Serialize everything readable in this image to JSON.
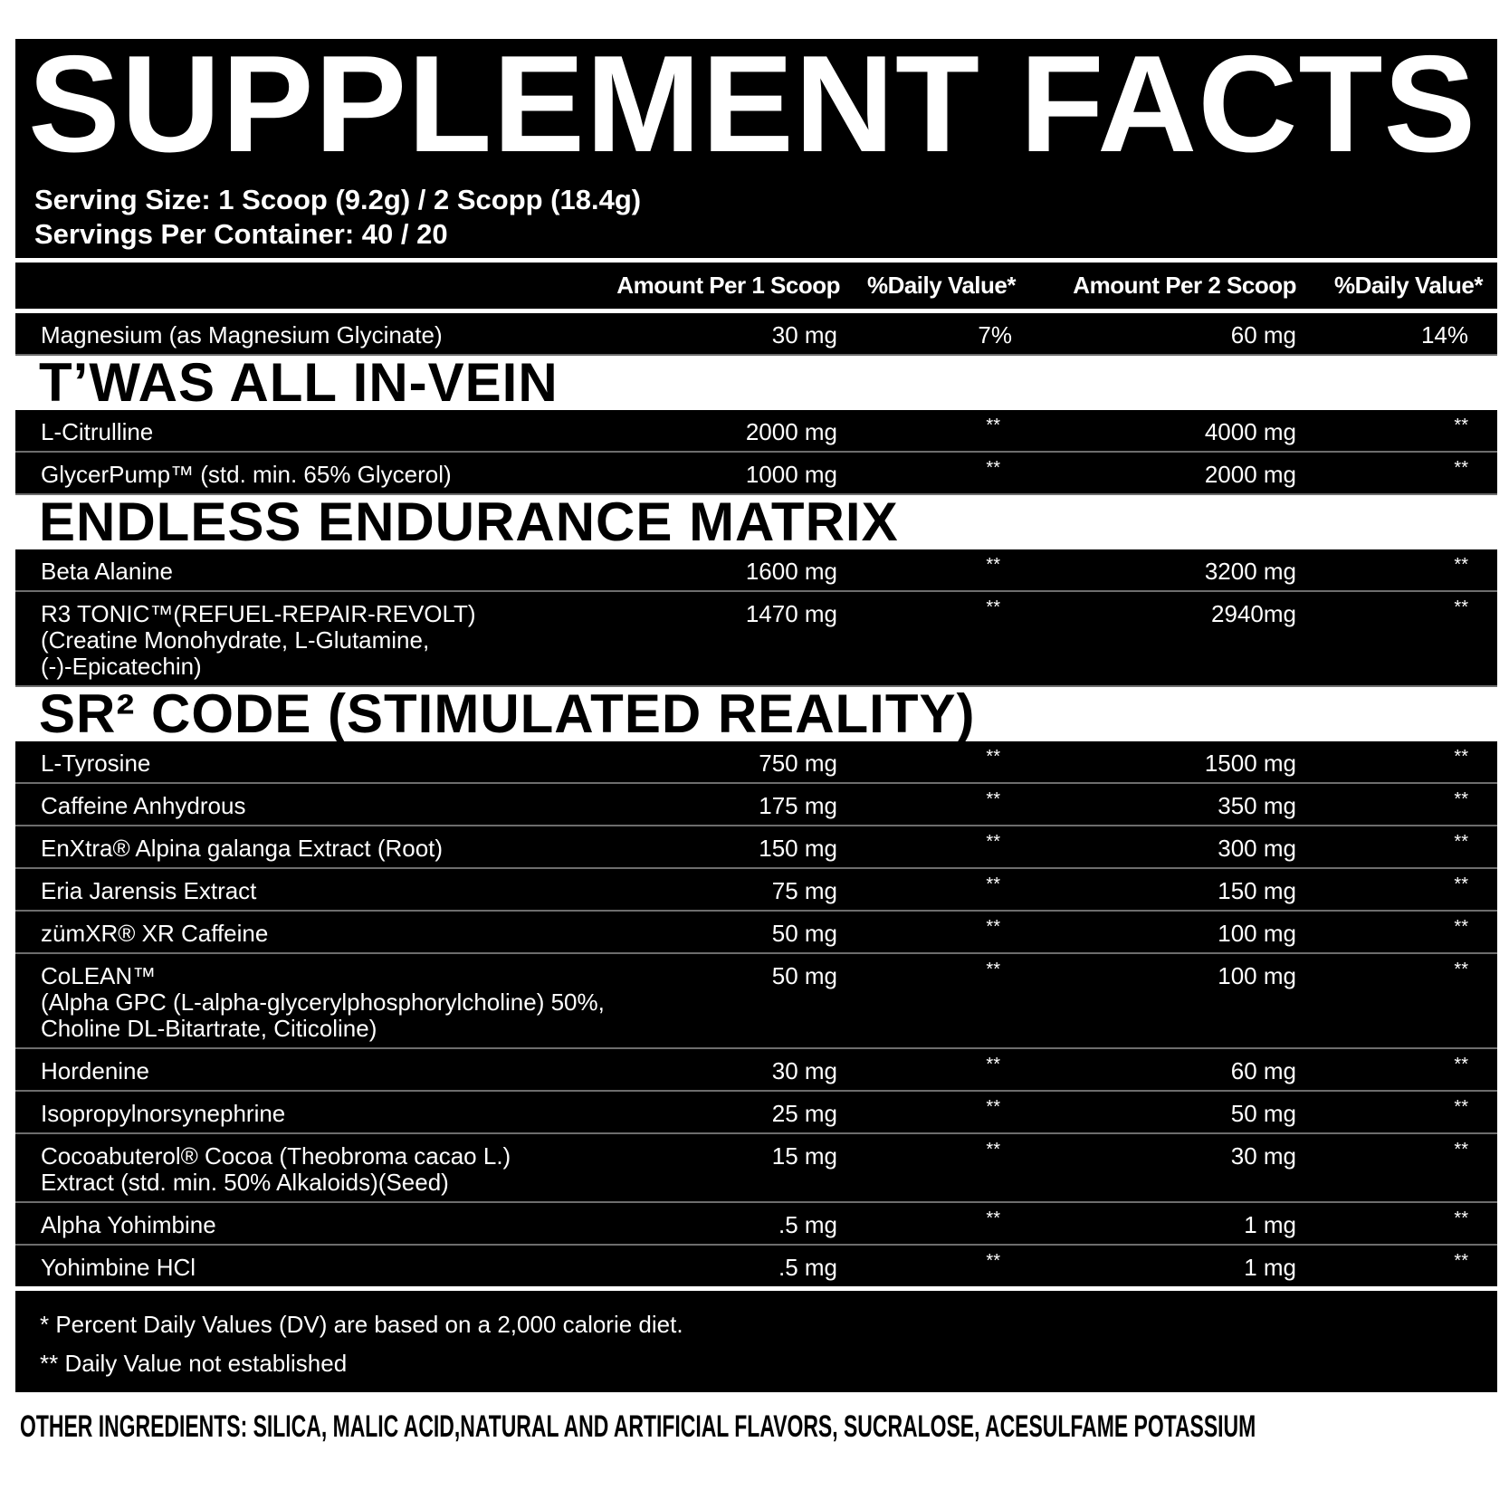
{
  "title": "SUPPLEMENT FACTS",
  "serving_size": "Serving Size: 1 Scoop (9.2g) / 2 Scopp (18.4g)",
  "servings_per_container": "Servings Per Container: 40 / 20",
  "columns": [
    "Amount Per 1 Scoop",
    "%Daily Value*",
    "Amount Per 2 Scoop",
    "%Daily Value*"
  ],
  "groups": [
    {
      "section": "",
      "rows": [
        {
          "label": "Magnesium (as Magnesium Glycinate)",
          "a1": "30 mg",
          "d1": "7%",
          "a2": "60 mg",
          "d2": "14%"
        }
      ]
    },
    {
      "section": "T’WAS ALL IN-VEIN",
      "rows": [
        {
          "label": "L-Citrulline",
          "a1": "2000 mg",
          "d1": "**",
          "a2": "4000 mg",
          "d2": "**"
        },
        {
          "label": "GlycerPump™ (std. min. 65% Glycerol)",
          "a1": "1000 mg",
          "d1": "**",
          "a2": "2000 mg",
          "d2": "**"
        }
      ]
    },
    {
      "section": "ENDLESS  ENDURANCE MATRIX",
      "rows": [
        {
          "label": "Beta Alanine",
          "a1": "1600 mg",
          "d1": "**",
          "a2": "3200 mg",
          "d2": "**"
        },
        {
          "label": "R3 TONIC™(REFUEL-REPAIR-REVOLT)\n(Creatine Monohydrate, L-Glutamine,\n(-)-Epicatechin)",
          "a1": "1470 mg",
          "d1": "**",
          "a2": "2940mg",
          "d2": "**"
        }
      ]
    },
    {
      "section": "SR²  CODE (STIMULATED REALITY)",
      "rows": [
        {
          "label": "L-Tyrosine",
          "a1": "750 mg",
          "d1": "**",
          "a2": "1500 mg",
          "d2": "**"
        },
        {
          "label": "Caffeine Anhydrous",
          "a1": "175 mg",
          "d1": "**",
          "a2": "350 mg",
          "d2": "**"
        },
        {
          "label": "EnXtra® Alpina galanga Extract (Root)",
          "a1": "150 mg",
          "d1": "**",
          "a2": "300 mg",
          "d2": "**"
        },
        {
          "label": "Eria Jarensis Extract",
          "a1": "75 mg",
          "d1": "**",
          "a2": "150 mg",
          "d2": "**"
        },
        {
          "label": "zümXR® XR Caffeine",
          "a1": "50 mg",
          "d1": "**",
          "a2": "100 mg",
          "d2": "**"
        },
        {
          "label": "CoLEAN™\n(Alpha GPC (L-alpha-glycerylphosphorylcholine) 50%,\nCholine DL-Bitartrate, Citicoline)",
          "a1": "50 mg",
          "d1": "**",
          "a2": "100 mg",
          "d2": "**"
        },
        {
          "label": "Hordenine",
          "a1": "30 mg",
          "d1": "**",
          "a2": "60 mg",
          "d2": "**"
        },
        {
          "label": "Isopropylnorsynephrine",
          "a1": "25 mg",
          "d1": "**",
          "a2": "50 mg",
          "d2": "**"
        },
        {
          "label": "Cocoabuterol® Cocoa (Theobroma cacao L.)\nExtract (std. min. 50% Alkaloids)(Seed)",
          "a1": "15 mg",
          "d1": "**",
          "a2": "30 mg",
          "d2": "**"
        },
        {
          "label": "Alpha Yohimbine",
          "a1": ".5 mg",
          "d1": "**",
          "a2": "1 mg",
          "d2": "**"
        },
        {
          "label": "Yohimbine HCl",
          "a1": ".5 mg",
          "d1": "**",
          "a2": "1 mg",
          "d2": "**"
        }
      ]
    }
  ],
  "footnotes": [
    "* Percent Daily Values (DV) are based on a 2,000 calorie diet.",
    "** Daily Value not established"
  ],
  "other_ingredients": "OTHER INGREDIENTS: SILICA, MALIC ACID,NATURAL AND ARTIFICIAL FLAVORS, SUCRALOSE, ACESULFAME POTASSIUM",
  "colors": {
    "panel": "#000000",
    "text": "#ffffff",
    "section_bg": "#ffffff"
  }
}
